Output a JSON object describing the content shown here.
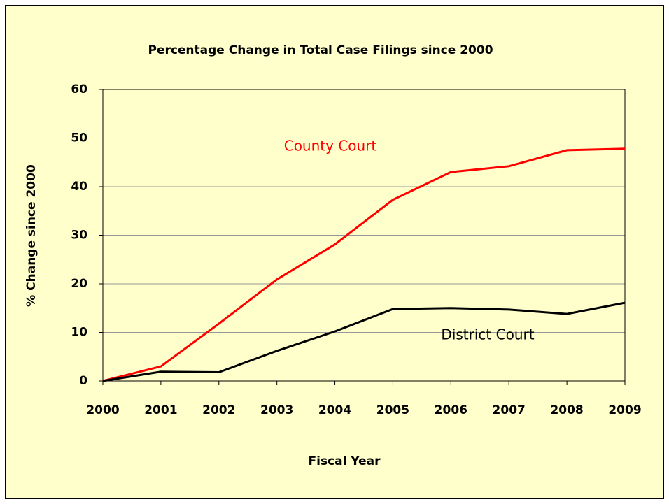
{
  "chart_data": {
    "type": "line",
    "title": "Percentage Change in Total Case Filings since 2000",
    "x_label": "Fiscal Year",
    "y_label": "% Change since 2000",
    "categories": [
      "2000",
      "2001",
      "2002",
      "2003",
      "2004",
      "2005",
      "2006",
      "2007",
      "2008",
      "2009"
    ],
    "series": [
      {
        "name": "County Court",
        "color": "#ff0000",
        "values": [
          0,
          3.0,
          11.8,
          20.9,
          28.1,
          37.3,
          43.0,
          44.2,
          47.5,
          47.8
        ]
      },
      {
        "name": "District Court",
        "color": "#000000",
        "values": [
          0,
          1.9,
          1.8,
          6.2,
          10.2,
          14.8,
          15.0,
          14.7,
          13.8,
          16.1
        ]
      }
    ],
    "ylim": [
      0,
      60
    ],
    "yticks": [
      0,
      10,
      20,
      30,
      40,
      50,
      60
    ],
    "grid": true
  }
}
